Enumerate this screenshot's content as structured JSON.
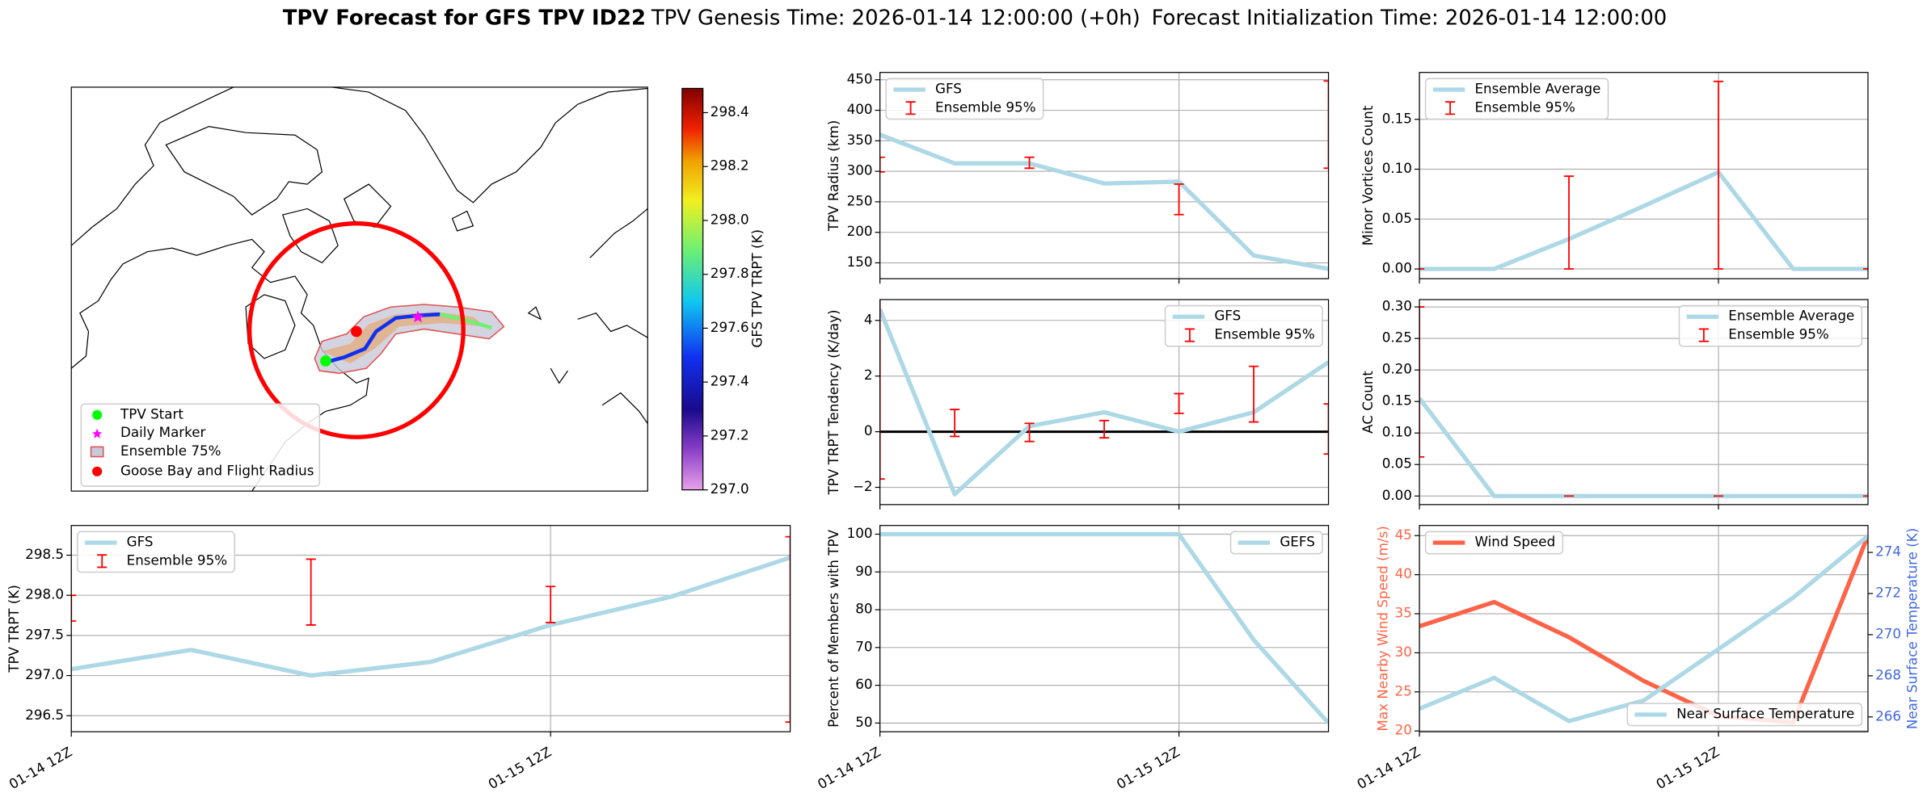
{
  "title": {
    "main": "TPV Forecast for GFS TPV ID22",
    "genesis": "TPV Genesis Time: 2026-01-14 12:00:00 (+0h)",
    "init": "Forecast Initialization Time: 2026-01-14 12:00:00"
  },
  "chart_data": [
    {
      "type": "map",
      "colorbar_label": "GFS TPV TRPT (K)",
      "clim": [
        297.0,
        298.49
      ],
      "cticks": [
        {
          "value": 297.0,
          "label": "297.0"
        },
        297.2,
        297.4,
        297.6,
        297.8,
        {
          "value": 298.0,
          "label": "298.0"
        },
        298.2,
        298.4
      ],
      "legend": "lower left",
      "legend_items": [
        "TPV Start",
        "Daily Marker",
        "Ensemble 75%",
        "Goose Bay and Flight Radius"
      ]
    },
    {
      "type": "line",
      "ylabel": "TPV Radius (km)",
      "categories": [
        "01-14 12Z",
        null,
        null,
        null,
        "01-15 12Z",
        null,
        null
      ],
      "xticklabels": false,
      "ylim": [
        124,
        462
      ],
      "yticks": [
        150,
        200,
        250,
        300,
        350,
        400,
        450
      ],
      "grid": true,
      "legend": "upper left",
      "series": [
        {
          "name": "GFS",
          "color": "#add8e6",
          "values": [
            360,
            313,
            313,
            280,
            283,
            162,
            140
          ]
        },
        {
          "name": "Ensemble 95%",
          "type": "errorbar",
          "color": "#ff0000",
          "low": [
            299,
            null,
            305,
            null,
            229,
            null,
            305
          ],
          "high": [
            323,
            null,
            323,
            null,
            279,
            null,
            448
          ]
        }
      ]
    },
    {
      "type": "line",
      "ylabel": "TPV TRPT Tendency (K/day)",
      "categories": [
        "01-14 12Z",
        null,
        null,
        null,
        "01-15 12Z",
        null,
        null
      ],
      "xticklabels": false,
      "ylim": [
        -2.62,
        4.75
      ],
      "yticks": [
        {
          "value": -2,
          "label": "−2"
        },
        0,
        2,
        4
      ],
      "grid": true,
      "legend": "upper right",
      "hline": 0,
      "hline_color": "#000000",
      "series": [
        {
          "name": "GFS",
          "color": "#add8e6",
          "values": [
            4.4,
            -2.25,
            0.2,
            0.7,
            0.0,
            0.7,
            2.5
          ]
        },
        {
          "name": "Ensemble 95%",
          "type": "errorbar",
          "color": "#ff0000",
          "low": [
            -1.7,
            -0.17,
            -0.35,
            -0.22,
            0.66,
            0.35,
            -0.8
          ],
          "high": [
            5.0,
            0.8,
            0.3,
            0.4,
            1.37,
            2.35,
            1.0
          ]
        }
      ]
    },
    {
      "type": "line",
      "ylabel": "Percent of Members with TPV",
      "categories": [
        "01-14 12Z",
        null,
        null,
        null,
        "01-15 12Z",
        null,
        null
      ],
      "ylim": [
        47.7,
        102.3
      ],
      "yticks": [
        50,
        60,
        70,
        80,
        90,
        100
      ],
      "grid": true,
      "legend": "upper right",
      "series": [
        {
          "name": "GEFS",
          "color": "#add8e6",
          "values": [
            100,
            100,
            100,
            100,
            100,
            72,
            50
          ]
        }
      ]
    },
    {
      "type": "line",
      "ylabel": "Minor Vortices Count",
      "categories": [
        "01-14 12Z",
        null,
        null,
        null,
        "01-15 12Z",
        null,
        null
      ],
      "xticklabels": false,
      "ylim": [
        -0.0098,
        0.197
      ],
      "yticks": [
        {
          "value": 0,
          "label": "0.00"
        },
        {
          "value": 0.05,
          "label": "0.05"
        },
        {
          "value": 0.1,
          "label": "0.10"
        },
        {
          "value": 0.15,
          "label": "0.15"
        }
      ],
      "grid": true,
      "legend": "upper left",
      "series": [
        {
          "name": "Ensemble Average",
          "color": "#add8e6",
          "values": [
            0,
            0,
            0.03,
            0.063,
            0.097,
            0,
            0
          ]
        },
        {
          "name": "Ensemble 95%",
          "type": "errorbar",
          "color": "#ff0000",
          "low": [
            0,
            null,
            0,
            null,
            0,
            null,
            0
          ],
          "high": [
            0,
            null,
            0.093,
            null,
            0.188,
            null,
            0
          ]
        }
      ]
    },
    {
      "type": "line",
      "ylabel": "AC Count",
      "categories": [
        "01-14 12Z",
        null,
        null,
        null,
        "01-15 12Z",
        null,
        null
      ],
      "xticklabels": false,
      "ylim": [
        -0.0136,
        0.3117
      ],
      "yticks": [
        {
          "value": 0,
          "label": "0.00"
        },
        {
          "value": 0.05,
          "label": "0.05"
        },
        {
          "value": 0.1,
          "label": "0.10"
        },
        {
          "value": 0.15,
          "label": "0.15"
        },
        {
          "value": 0.2,
          "label": "0.20"
        },
        {
          "value": 0.25,
          "label": "0.25"
        },
        {
          "value": 0.3,
          "label": "0.30"
        }
      ],
      "grid": true,
      "legend": "upper right",
      "series": [
        {
          "name": "Ensemble Average",
          "color": "#add8e6",
          "values": [
            0.155,
            0,
            0,
            0,
            0,
            0,
            0
          ]
        },
        {
          "name": "Ensemble 95%",
          "type": "errorbar",
          "color": "#ff0000",
          "low": [
            0.062,
            null,
            0,
            null,
            0,
            null,
            0
          ],
          "high": [
            0.3,
            null,
            0,
            null,
            0,
            null,
            0
          ]
        }
      ]
    },
    {
      "type": "line",
      "ylabel": "Max Nearby Wind Speed (m/s)",
      "ycolor": "#ff6347",
      "y2label": "Near Surface Temperature (K)",
      "y2color": "#4169e1",
      "categories": [
        "01-14 12Z",
        null,
        null,
        null,
        "01-15 12Z",
        null,
        null
      ],
      "ylim": [
        19.9,
        46.3
      ],
      "yticks": [
        20,
        25,
        30,
        35,
        40,
        45
      ],
      "y2lim": [
        265.28,
        275.31
      ],
      "y2ticks": [
        266,
        268,
        270,
        272,
        274
      ],
      "grid": true,
      "legend": "upper left",
      "series": [
        {
          "name": "Wind Speed",
          "color": "#ff6347",
          "values": [
            33.4,
            36.5,
            32.0,
            26.4,
            21.9,
            21.1,
            45.0
          ]
        },
        {
          "name": "Near Surface Temperature",
          "color": "#add8e6",
          "axis": "y2",
          "legend": "lower right",
          "values": [
            266.4,
            267.9,
            265.8,
            266.8,
            269.3,
            271.8,
            274.8
          ]
        }
      ]
    },
    {
      "type": "line",
      "ylabel": "TPV TRPT (K)",
      "categories": [
        "01-14 12Z",
        null,
        null,
        null,
        "01-15 12Z",
        null,
        null
      ],
      "ylim": [
        296.3,
        298.87
      ],
      "yticks": [
        296.5,
        {
          "value": 297,
          "label": "297.0"
        },
        297.5,
        {
          "value": 298,
          "label": "298.0"
        },
        298.5
      ],
      "grid": true,
      "legend": "upper left",
      "series": [
        {
          "name": "GFS",
          "color": "#add8e6",
          "values": [
            297.08,
            297.32,
            297.0,
            297.17,
            297.63,
            297.98,
            298.47
          ]
        },
        {
          "name": "Ensemble 95%",
          "type": "errorbar",
          "color": "#ff0000",
          "low": [
            297.68,
            null,
            297.63,
            null,
            297.66,
            null,
            296.42
          ],
          "high": [
            298.0,
            null,
            298.45,
            null,
            298.11,
            null,
            298.73
          ]
        }
      ]
    }
  ]
}
